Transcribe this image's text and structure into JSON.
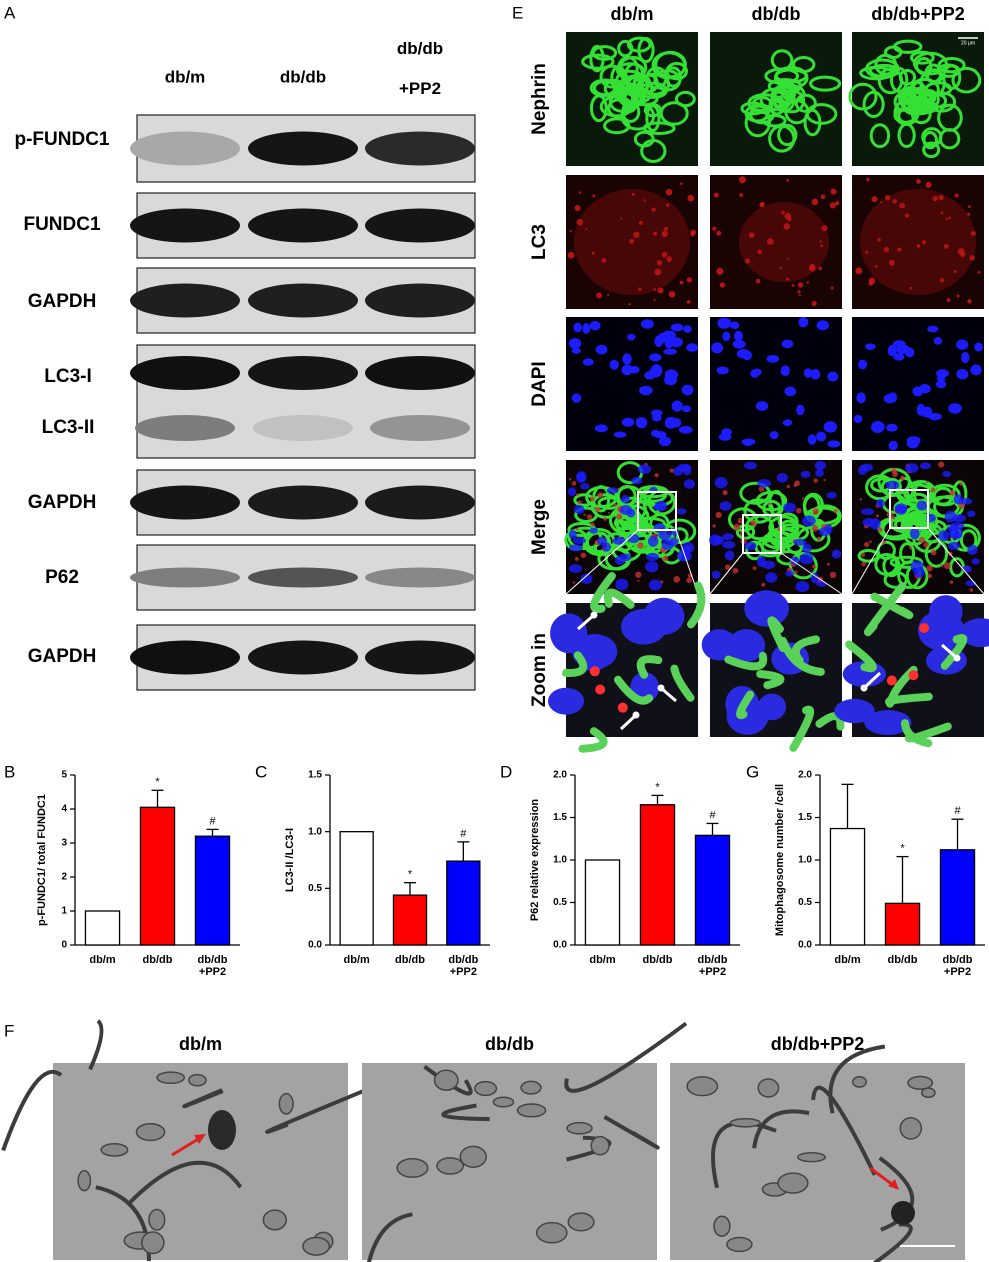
{
  "panel_labels": [
    "A",
    "B",
    "C",
    "D",
    "E",
    "F",
    "G"
  ],
  "blot": {
    "groups": [
      "db/m",
      "db/db",
      "db/db\n+PP2"
    ],
    "rows": [
      "p-FUNDC1",
      "FUNDC1",
      "GAPDH",
      "LC3-I",
      "LC3-II",
      "GAPDH",
      "P62",
      "GAPDH"
    ]
  },
  "fluorescence": {
    "groups": [
      "db/m",
      "db/db",
      "db/db+PP2"
    ],
    "rows": [
      "Nephrin",
      "LC3",
      "DAPI",
      "Merge",
      "Zoom in"
    ],
    "scale_bar": "20 μm"
  },
  "em": {
    "groups": [
      "db/m",
      "db/db",
      "db/db+PP2"
    ]
  },
  "chart_data": [
    {
      "type": "bar",
      "y_label": "p-FUNDC1/ total FUNDC1",
      "categories": [
        "db/m",
        "db/db",
        "db/db\n+PP2"
      ],
      "values": [
        1,
        4.05,
        3.2
      ],
      "errors": [
        null,
        0.5,
        0.2
      ],
      "colors": [
        "#ffffff",
        "#ff0000",
        "#0000ff"
      ],
      "markers": [
        null,
        "*",
        "#"
      ],
      "ylim": [
        0,
        5
      ],
      "yticks": [
        0,
        1,
        2,
        3,
        4,
        5
      ]
    },
    {
      "type": "bar",
      "y_label": "LC3-II /LC3-I",
      "categories": [
        "db/m",
        "db/db",
        "db/db\n+PP2"
      ],
      "values": [
        1.0,
        0.44,
        0.74
      ],
      "errors": [
        null,
        0.11,
        0.17
      ],
      "colors": [
        "#ffffff",
        "#ff0000",
        "#0000ff"
      ],
      "markers": [
        null,
        "*",
        "#"
      ],
      "ylim": [
        0,
        1.5
      ],
      "yticks": [
        {
          "value": 0,
          "label": "0.0"
        },
        {
          "value": 0.5,
          "label": "0.5"
        },
        {
          "value": 1,
          "label": "1.0"
        },
        {
          "value": 1.5,
          "label": "1.5"
        }
      ]
    },
    {
      "type": "bar",
      "y_label": "P62 relative expression",
      "categories": [
        "db/m",
        "db/db",
        "db/db\n+PP2"
      ],
      "values": [
        1.0,
        1.65,
        1.29
      ],
      "errors": [
        null,
        0.11,
        0.14
      ],
      "colors": [
        "#ffffff",
        "#ff0000",
        "#0000ff"
      ],
      "markers": [
        null,
        "*",
        "#"
      ],
      "ylim": [
        0,
        2
      ],
      "yticks": [
        {
          "value": 0,
          "label": "0.0"
        },
        {
          "value": 0.5,
          "label": "0.5"
        },
        {
          "value": 1,
          "label": "1.0"
        },
        {
          "value": 1.5,
          "label": "1.5"
        },
        {
          "value": 2,
          "label": "2.0"
        }
      ]
    },
    {
      "type": "bar",
      "y_label": "Mitophagosome number /cell",
      "categories": [
        "db/m",
        "db/db",
        "db/db\n+PP2"
      ],
      "values": [
        1.37,
        0.49,
        1.12
      ],
      "errors": [
        0.52,
        0.55,
        0.36
      ],
      "colors": [
        "#ffffff",
        "#ff0000",
        "#0000ff"
      ],
      "markers": [
        null,
        "*",
        "#"
      ],
      "ylim": [
        0,
        2
      ],
      "yticks": [
        {
          "value": 0,
          "label": "0.0"
        },
        {
          "value": 0.5,
          "label": "0.5"
        },
        {
          "value": 1,
          "label": "1.0"
        },
        {
          "value": 1.5,
          "label": "1.5"
        },
        {
          "value": 2,
          "label": "2.0"
        }
      ]
    }
  ]
}
